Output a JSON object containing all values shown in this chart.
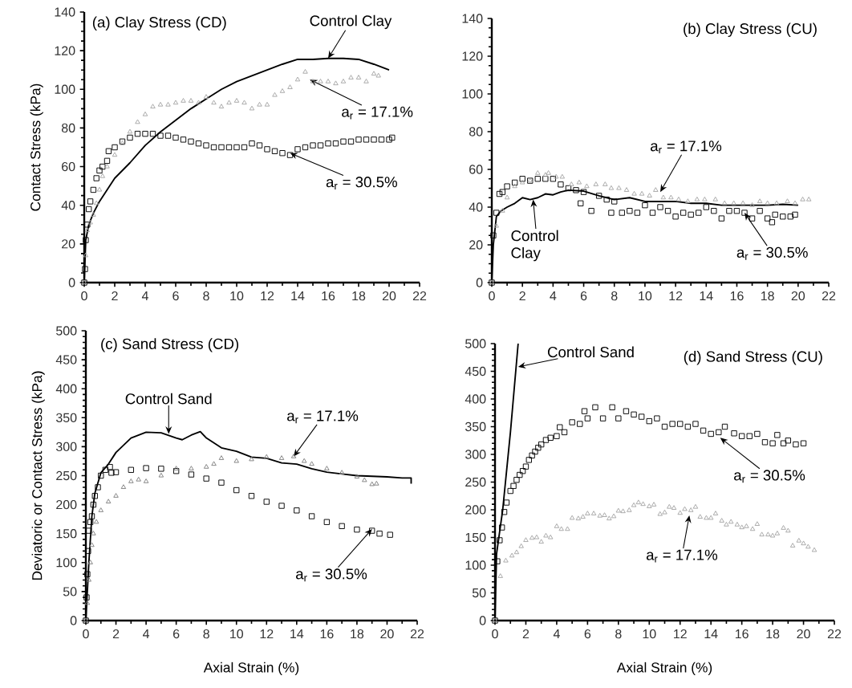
{
  "chart_data": [
    {
      "type": "scatter",
      "title": "(a)  Clay Stress (CD)",
      "ylabel": "Contact Stress (kPa)",
      "xlim": [
        0,
        22
      ],
      "ylim": [
        0,
        140
      ],
      "xticks": [
        0,
        2,
        4,
        6,
        8,
        10,
        12,
        14,
        16,
        18,
        20,
        22
      ],
      "yticks": [
        0,
        20,
        40,
        60,
        80,
        100,
        120,
        140
      ],
      "series": [
        {
          "type": "line",
          "color": "#000000",
          "marker": "none",
          "line_style": "solid",
          "x": [
            0,
            0.1,
            0.3,
            0.6,
            1,
            1.5,
            2,
            3,
            4,
            5,
            6,
            7,
            8,
            9,
            10,
            11,
            12,
            13,
            14,
            15,
            16,
            17,
            18,
            19,
            20
          ],
          "values": [
            0,
            22,
            30,
            36,
            42,
            48,
            54,
            62,
            71,
            78,
            84,
            90,
            95,
            100,
            104,
            107,
            110,
            113,
            115.5,
            115.5,
            116,
            116,
            115.5,
            113,
            110
          ]
        },
        {
          "type": "scatter",
          "color": "#000000",
          "marker": "square",
          "x": [
            0,
            0.05,
            0.1,
            0.2,
            0.3,
            0.4,
            0.6,
            0.8,
            1,
            1.2,
            1.5,
            1.6,
            2,
            2.5,
            3,
            3.5,
            4,
            4.5,
            5,
            5.5,
            6,
            6.5,
            7,
            7.5,
            8,
            8.5,
            9,
            9.5,
            10,
            10.5,
            11,
            11.5,
            12,
            12.5,
            13,
            13.5,
            14,
            14.5,
            15,
            15.5,
            16,
            16.5,
            17,
            17.5,
            18,
            18.5,
            19,
            19.5,
            20,
            20.2
          ],
          "values": [
            0,
            7,
            22,
            30,
            38,
            42,
            48,
            54,
            58,
            60,
            63,
            68,
            70,
            73,
            75,
            77,
            77,
            77,
            76,
            76,
            75,
            74,
            73,
            72,
            71,
            70,
            70,
            70,
            70,
            70,
            72,
            71,
            69,
            68,
            67,
            66,
            69,
            70,
            71,
            71,
            72,
            72,
            73,
            73,
            74,
            74,
            74,
            74,
            74,
            75
          ]
        },
        {
          "type": "scatter",
          "color": "#a6a6a6",
          "marker": "triangle",
          "x": [
            0,
            0.1,
            0.2,
            0.4,
            0.6,
            0.8,
            1,
            1.2,
            1.5,
            2,
            2.5,
            3,
            3.5,
            4,
            4.5,
            5,
            5.5,
            6,
            6.5,
            7,
            7.5,
            8,
            8.5,
            9,
            9.5,
            10,
            10.5,
            11,
            11.5,
            12,
            12.5,
            13,
            13.5,
            14,
            14.5,
            15,
            15.5,
            16,
            16.5,
            17,
            17.5,
            18,
            18.5,
            19,
            19.3
          ],
          "values": [
            0,
            14,
            27,
            31,
            35,
            41,
            48,
            55,
            60,
            66,
            72,
            78,
            83,
            87,
            91,
            92,
            92,
            93,
            94,
            94,
            93,
            96,
            93,
            91,
            93,
            94,
            93,
            90,
            92,
            92,
            97,
            99,
            101,
            105,
            109,
            104,
            104,
            104,
            103,
            104,
            106,
            106,
            104,
            108,
            107
          ]
        }
      ],
      "annotations": [
        {
          "text": "Control Clay",
          "x": 16,
          "y": 116
        },
        {
          "text": "a$_{r}$ = 17.1%",
          "x": 14.8,
          "y": 105
        },
        {
          "text": "a$_{r}$ = 30.5%",
          "x": 13.5,
          "y": 67
        }
      ]
    },
    {
      "type": "scatter",
      "title": "(b) Clay Stress (CU)",
      "xlim": [
        0,
        22
      ],
      "ylim": [
        0,
        140
      ],
      "xticks": [
        0,
        2,
        4,
        6,
        8,
        10,
        12,
        14,
        16,
        18,
        20,
        22
      ],
      "yticks": [
        0,
        20,
        40,
        60,
        80,
        100,
        120,
        140
      ],
      "series": [
        {
          "type": "line",
          "color": "#000000",
          "marker": "none",
          "line_style": "solid",
          "x": [
            0,
            0.1,
            0.3,
            0.6,
            1,
            1.5,
            2,
            2.5,
            3,
            3.5,
            4,
            4.5,
            5,
            6,
            7,
            8,
            9,
            10,
            11,
            12,
            13,
            14,
            15,
            16,
            17,
            18,
            19,
            20
          ],
          "values": [
            0,
            20,
            35,
            38,
            40,
            42,
            45,
            44,
            45,
            47,
            46.5,
            48,
            49,
            48.5,
            46,
            44,
            45,
            43,
            43,
            43,
            42,
            42,
            41,
            41,
            41,
            41,
            41.5,
            41
          ]
        },
        {
          "type": "scatter",
          "color": "#000000",
          "marker": "square",
          "x": [
            0,
            0.1,
            0.3,
            0.5,
            0.7,
            1,
            1.5,
            2,
            2.5,
            3,
            3.5,
            4,
            4.5,
            5,
            5.5,
            5.8,
            6,
            6.5,
            7,
            7.5,
            7.8,
            8,
            8.5,
            9,
            9.5,
            10,
            10.5,
            11,
            11.5,
            12,
            12.5,
            13,
            13.5,
            14,
            14.5,
            15,
            15.5,
            16,
            16.5,
            17,
            17.5,
            18,
            18.3,
            18.5,
            19,
            19.5,
            19.8
          ],
          "values": [
            0,
            25,
            37,
            47,
            48,
            51,
            53,
            55,
            54,
            55,
            55,
            55,
            52,
            50,
            49,
            42,
            48,
            38,
            46,
            44,
            37,
            43,
            37,
            38,
            37,
            41,
            37,
            40,
            38,
            35,
            37,
            36,
            37,
            40,
            38,
            34,
            38,
            38,
            37,
            34,
            38,
            34,
            32,
            36,
            35,
            35,
            36
          ]
        },
        {
          "type": "scatter",
          "color": "#a6a6a6",
          "marker": "triangle",
          "x": [
            0,
            0.3,
            0.7,
            1,
            1.5,
            2,
            2.5,
            3,
            3.5,
            3.7,
            4.2,
            4.6,
            5.2,
            5.7,
            6.2,
            6.8,
            7.4,
            7.8,
            8.3,
            8.8,
            9.3,
            9.8,
            10.3,
            10.7,
            11.2,
            11.7,
            12.2,
            12.8,
            13.4,
            13.9,
            14.6,
            15.2,
            15.8,
            16.4,
            17,
            17.5,
            18,
            18.6,
            19.3,
            19.8,
            20.3,
            20.7
          ],
          "values": [
            0,
            30,
            38,
            45,
            51,
            53,
            54,
            58,
            57,
            58,
            56,
            56,
            52,
            53,
            51,
            52,
            52,
            50,
            50,
            49,
            47,
            47,
            46,
            49,
            45,
            45,
            44,
            43,
            44,
            44,
            44,
            42,
            42,
            42,
            41,
            43,
            42,
            42,
            43,
            42,
            44,
            44
          ]
        }
      ],
      "annotations": [
        {
          "text": "a$_{r}$ = 17.1%",
          "x": 11,
          "y": 48
        },
        {
          "text": "Control Clay",
          "x": 2.7,
          "y": 44
        },
        {
          "text": "a$_{r}$ = 30.5%",
          "x": 16.5,
          "y": 37
        }
      ]
    },
    {
      "type": "scatter",
      "title": "(c) Sand Stress (CD)",
      "xlabel": "Axial Strain (%)",
      "ylabel": "Deviatoric or Contact Stress (kPa)",
      "xlim": [
        0,
        22
      ],
      "ylim": [
        0,
        500
      ],
      "xticks": [
        0,
        2,
        4,
        6,
        8,
        10,
        12,
        14,
        16,
        18,
        20,
        22
      ],
      "yticks": [
        0,
        50,
        100,
        150,
        200,
        250,
        300,
        350,
        400,
        450,
        500
      ],
      "series": [
        {
          "type": "line",
          "color": "#000000",
          "marker": "none",
          "line_style": "solid",
          "x": [
            0,
            0.2,
            0.4,
            0.6,
            1,
            1.5,
            2,
            3,
            4,
            5,
            6,
            6.4,
            7,
            7.6,
            8,
            9,
            10,
            11,
            12,
            13,
            14,
            15,
            16,
            17,
            18,
            19,
            20,
            21,
            21.6,
            21.6
          ],
          "values": [
            0,
            100,
            180,
            220,
            255,
            270,
            290,
            315,
            325,
            324,
            315,
            312,
            320,
            326,
            315,
            298,
            292,
            282,
            280,
            272,
            270,
            262,
            256,
            253,
            250,
            249,
            248,
            246,
            246,
            236
          ]
        },
        {
          "type": "scatter",
          "color": "#000000",
          "marker": "square",
          "x": [
            0,
            0.05,
            0.1,
            0.15,
            0.2,
            0.3,
            0.4,
            0.5,
            0.6,
            0.8,
            1,
            1.3,
            1.6,
            1.7,
            2,
            3,
            4,
            5,
            6,
            7,
            8,
            9,
            10,
            11,
            12,
            13,
            14,
            15,
            16,
            17,
            18,
            19,
            19.5,
            20.2
          ],
          "values": [
            0,
            40,
            80,
            120,
            155,
            170,
            180,
            200,
            215,
            230,
            250,
            260,
            265,
            255,
            256,
            260,
            263,
            262,
            258,
            252,
            245,
            238,
            225,
            215,
            205,
            198,
            190,
            180,
            170,
            163,
            157,
            155,
            150,
            148
          ]
        },
        {
          "type": "scatter",
          "color": "#808080",
          "marker": "triangle",
          "x": [
            0,
            0.1,
            0.2,
            0.3,
            0.4,
            0.5,
            0.7,
            1,
            1.5,
            2,
            2.5,
            3,
            3.5,
            4,
            5,
            6,
            7,
            8,
            8.5,
            9,
            10,
            11,
            12,
            13,
            13.8,
            14.5,
            15,
            16,
            17,
            18,
            18.5,
            19,
            19.3
          ],
          "values": [
            0,
            30,
            70,
            100,
            130,
            150,
            170,
            190,
            205,
            215,
            230,
            240,
            243,
            240,
            250,
            262,
            262,
            265,
            270,
            280,
            275,
            278,
            282,
            280,
            283,
            275,
            270,
            262,
            255,
            248,
            242,
            235,
            236
          ]
        }
      ],
      "annotations": [
        {
          "text": "Control Sand",
          "x": 5.5,
          "y": 322
        },
        {
          "text": "a$_{r}$ = 17.1%",
          "x": 13.8,
          "y": 283
        },
        {
          "text": "a$_{r}$ = 30.5%",
          "x": 19,
          "y": 158
        }
      ]
    },
    {
      "type": "scatter",
      "title": "(d) Sand Stress (CU)",
      "xlabel": "Axial Strain (%)",
      "xlim": [
        0,
        22
      ],
      "ylim": [
        0,
        500
      ],
      "xticks": [
        0,
        2,
        4,
        6,
        8,
        10,
        12,
        14,
        16,
        18,
        20,
        22
      ],
      "yticks": [
        0,
        50,
        100,
        150,
        200,
        250,
        300,
        350,
        400,
        450,
        500
      ],
      "series": [
        {
          "type": "line",
          "color": "#000000",
          "marker": "none",
          "line_style": "solid",
          "x": [
            0,
            0.1,
            0.5,
            1,
            1.5
          ],
          "values": [
            0,
            120,
            200,
            340,
            500
          ]
        },
        {
          "type": "scatter",
          "color": "#000000",
          "marker": "square",
          "x": [
            0,
            0.15,
            0.3,
            0.45,
            0.6,
            0.75,
            1,
            1.2,
            1.4,
            1.6,
            1.8,
            2,
            2.2,
            2.4,
            2.6,
            2.8,
            3,
            3.3,
            3.6,
            4,
            4.2,
            4.5,
            5,
            5.5,
            5.8,
            6,
            6.5,
            7,
            7.6,
            8,
            8.5,
            9,
            9.5,
            10,
            10.5,
            11,
            11.5,
            12,
            12.5,
            13,
            13.5,
            14,
            14.5,
            14.9,
            15.5,
            16,
            16.5,
            17,
            17.5,
            18,
            18.3,
            18.7,
            19,
            19.5,
            20
          ],
          "values": [
            0,
            107,
            145,
            168,
            196,
            213,
            234,
            243,
            254,
            263,
            270,
            278,
            290,
            298,
            305,
            312,
            318,
            326,
            330,
            333,
            349,
            340,
            358,
            355,
            378,
            365,
            385,
            365,
            385,
            365,
            378,
            372,
            368,
            360,
            365,
            350,
            355,
            355,
            350,
            355,
            343,
            337,
            340,
            350,
            338,
            333,
            333,
            337,
            322,
            320,
            335,
            320,
            325,
            318,
            320
          ]
        },
        {
          "type": "scatter",
          "color": "#a6a6a6",
          "marker": "triangle",
          "x": [
            0,
            0.35,
            0.7,
            1.1,
            1.4,
            1.7,
            2,
            2.4,
            2.7,
            3,
            3.3,
            3.6,
            4,
            4.3,
            4.7,
            5,
            5.4,
            5.7,
            6,
            6.4,
            6.8,
            7.1,
            7.4,
            7.7,
            8,
            8.3,
            8.7,
            9,
            9.3,
            9.6,
            10,
            10.3,
            10.7,
            11,
            11.3,
            11.6,
            12,
            12.3,
            12.7,
            13,
            13.3,
            13.7,
            14,
            14.3,
            14.7,
            15,
            15.3,
            15.7,
            16,
            16.3,
            16.7,
            17,
            17.3,
            17.7,
            18,
            18.3,
            18.7,
            19,
            19.3,
            19.7,
            20,
            20.3,
            20.7
          ],
          "values": [
            0,
            80,
            108,
            117,
            123,
            134,
            145,
            149,
            150,
            142,
            153,
            150,
            170,
            165,
            165,
            185,
            184,
            187,
            193,
            193,
            189,
            190,
            184,
            188,
            198,
            197,
            199,
            208,
            213,
            210,
            206,
            209,
            192,
            195,
            205,
            203,
            194,
            201,
            199,
            205,
            187,
            185,
            185,
            193,
            180,
            173,
            178,
            173,
            168,
            170,
            165,
            174,
            155,
            155,
            153,
            157,
            167,
            162,
            135,
            144,
            139,
            133,
            127
          ]
        }
      ],
      "annotations": [
        {
          "text": "Control Sand",
          "x": 1.5,
          "y": 458
        },
        {
          "text": "a$_{r}$ = 30.5%",
          "x": 14.6,
          "y": 330
        },
        {
          "text": "a$_{r}$ = 17.1%",
          "x": 12.6,
          "y": 190
        }
      ]
    }
  ]
}
